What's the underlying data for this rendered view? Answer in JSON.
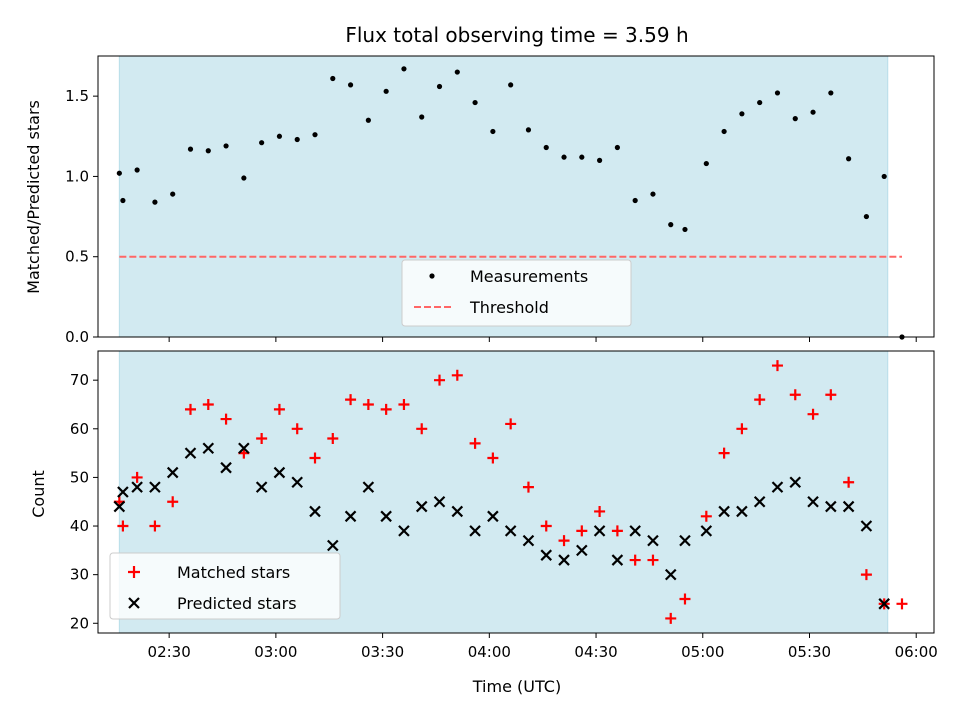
{
  "chart_data": {
    "type": "scatter",
    "title": "Flux total observing time = 3.59 h",
    "xlabel": "Time (UTC)",
    "shaded_range": [
      "02:16",
      "05:52"
    ],
    "x_ticks": [
      "02:30",
      "03:00",
      "03:30",
      "04:00",
      "04:30",
      "05:00",
      "05:30",
      "06:00"
    ],
    "xlim": [
      "02:10",
      "06:05"
    ],
    "colors": {
      "shade": "#add8e6",
      "measurements": "#000000",
      "threshold": "#ff6666",
      "matched": "#ff0000",
      "predicted": "#000000"
    },
    "panels": [
      {
        "ylabel": "Matched/Predicted stars",
        "ylim": [
          0,
          1.75
        ],
        "y_ticks": [
          "0.0",
          "0.5",
          "1.0",
          "1.5"
        ],
        "legend_placement": "lower center",
        "threshold": {
          "name": "Threshold",
          "value": 0.5,
          "x_range": [
            "02:16",
            "05:56"
          ]
        },
        "series": [
          {
            "name": "Measurements",
            "marker": "dot",
            "points": [
              [
                "02:16",
                1.02
              ],
              [
                "02:17",
                0.85
              ],
              [
                "02:21",
                1.04
              ],
              [
                "02:26",
                0.84
              ],
              [
                "02:31",
                0.89
              ],
              [
                "02:36",
                1.17
              ],
              [
                "02:41",
                1.16
              ],
              [
                "02:46",
                1.19
              ],
              [
                "02:51",
                0.99
              ],
              [
                "02:56",
                1.21
              ],
              [
                "03:01",
                1.25
              ],
              [
                "03:06",
                1.23
              ],
              [
                "03:11",
                1.26
              ],
              [
                "03:16",
                1.61
              ],
              [
                "03:21",
                1.57
              ],
              [
                "03:26",
                1.35
              ],
              [
                "03:31",
                1.53
              ],
              [
                "03:36",
                1.67
              ],
              [
                "03:41",
                1.37
              ],
              [
                "03:46",
                1.56
              ],
              [
                "03:51",
                1.65
              ],
              [
                "03:56",
                1.46
              ],
              [
                "04:01",
                1.28
              ],
              [
                "04:06",
                1.57
              ],
              [
                "04:11",
                1.29
              ],
              [
                "04:16",
                1.18
              ],
              [
                "04:21",
                1.12
              ],
              [
                "04:26",
                1.12
              ],
              [
                "04:31",
                1.1
              ],
              [
                "04:36",
                1.18
              ],
              [
                "04:41",
                0.85
              ],
              [
                "04:46",
                0.89
              ],
              [
                "04:51",
                0.7
              ],
              [
                "04:55",
                0.67
              ],
              [
                "05:01",
                1.08
              ],
              [
                "05:06",
                1.28
              ],
              [
                "05:11",
                1.39
              ],
              [
                "05:16",
                1.46
              ],
              [
                "05:21",
                1.52
              ],
              [
                "05:26",
                1.36
              ],
              [
                "05:31",
                1.4
              ],
              [
                "05:36",
                1.52
              ],
              [
                "05:41",
                1.11
              ],
              [
                "05:46",
                0.75
              ],
              [
                "05:51",
                1.0
              ],
              [
                "05:56",
                0.0
              ]
            ]
          }
        ]
      },
      {
        "ylabel": "Count",
        "ylim": [
          18,
          76
        ],
        "y_ticks": [
          "20",
          "30",
          "40",
          "50",
          "60",
          "70"
        ],
        "legend_placement": "lower left",
        "series": [
          {
            "name": "Matched stars",
            "marker": "plus",
            "points": [
              [
                "02:16",
                45
              ],
              [
                "02:17",
                40
              ],
              [
                "02:21",
                50
              ],
              [
                "02:26",
                40
              ],
              [
                "02:31",
                45
              ],
              [
                "02:36",
                64
              ],
              [
                "02:41",
                65
              ],
              [
                "02:46",
                62
              ],
              [
                "02:51",
                55
              ],
              [
                "02:56",
                58
              ],
              [
                "03:01",
                64
              ],
              [
                "03:06",
                60
              ],
              [
                "03:11",
                54
              ],
              [
                "03:16",
                58
              ],
              [
                "03:21",
                66
              ],
              [
                "03:26",
                65
              ],
              [
                "03:31",
                64
              ],
              [
                "03:36",
                65
              ],
              [
                "03:41",
                60
              ],
              [
                "03:46",
                70
              ],
              [
                "03:51",
                71
              ],
              [
                "03:56",
                57
              ],
              [
                "04:01",
                54
              ],
              [
                "04:06",
                61
              ],
              [
                "04:11",
                48
              ],
              [
                "04:16",
                40
              ],
              [
                "04:21",
                37
              ],
              [
                "04:26",
                39
              ],
              [
                "04:31",
                43
              ],
              [
                "04:36",
                39
              ],
              [
                "04:41",
                33
              ],
              [
                "04:46",
                33
              ],
              [
                "04:51",
                21
              ],
              [
                "04:55",
                25
              ],
              [
                "05:01",
                42
              ],
              [
                "05:06",
                55
              ],
              [
                "05:11",
                60
              ],
              [
                "05:16",
                66
              ],
              [
                "05:21",
                73
              ],
              [
                "05:26",
                67
              ],
              [
                "05:31",
                63
              ],
              [
                "05:36",
                67
              ],
              [
                "05:41",
                49
              ],
              [
                "05:46",
                30
              ],
              [
                "05:51",
                24
              ],
              [
                "05:56",
                24
              ]
            ]
          },
          {
            "name": "Predicted stars",
            "marker": "x",
            "points": [
              [
                "02:16",
                44
              ],
              [
                "02:17",
                47
              ],
              [
                "02:21",
                48
              ],
              [
                "02:26",
                48
              ],
              [
                "02:31",
                51
              ],
              [
                "02:36",
                55
              ],
              [
                "02:41",
                56
              ],
              [
                "02:46",
                52
              ],
              [
                "02:51",
                56
              ],
              [
                "02:56",
                48
              ],
              [
                "03:01",
                51
              ],
              [
                "03:06",
                49
              ],
              [
                "03:11",
                43
              ],
              [
                "03:16",
                36
              ],
              [
                "03:21",
                42
              ],
              [
                "03:26",
                48
              ],
              [
                "03:31",
                42
              ],
              [
                "03:36",
                39
              ],
              [
                "03:41",
                44
              ],
              [
                "03:46",
                45
              ],
              [
                "03:51",
                43
              ],
              [
                "03:56",
                39
              ],
              [
                "04:01",
                42
              ],
              [
                "04:06",
                39
              ],
              [
                "04:11",
                37
              ],
              [
                "04:16",
                34
              ],
              [
                "04:21",
                33
              ],
              [
                "04:26",
                35
              ],
              [
                "04:31",
                39
              ],
              [
                "04:36",
                33
              ],
              [
                "04:41",
                39
              ],
              [
                "04:46",
                37
              ],
              [
                "04:51",
                30
              ],
              [
                "04:55",
                37
              ],
              [
                "05:01",
                39
              ],
              [
                "05:06",
                43
              ],
              [
                "05:11",
                43
              ],
              [
                "05:16",
                45
              ],
              [
                "05:21",
                48
              ],
              [
                "05:26",
                49
              ],
              [
                "05:31",
                45
              ],
              [
                "05:36",
                44
              ],
              [
                "05:41",
                44
              ],
              [
                "05:46",
                40
              ],
              [
                "05:51",
                24
              ]
            ]
          }
        ]
      }
    ]
  }
}
